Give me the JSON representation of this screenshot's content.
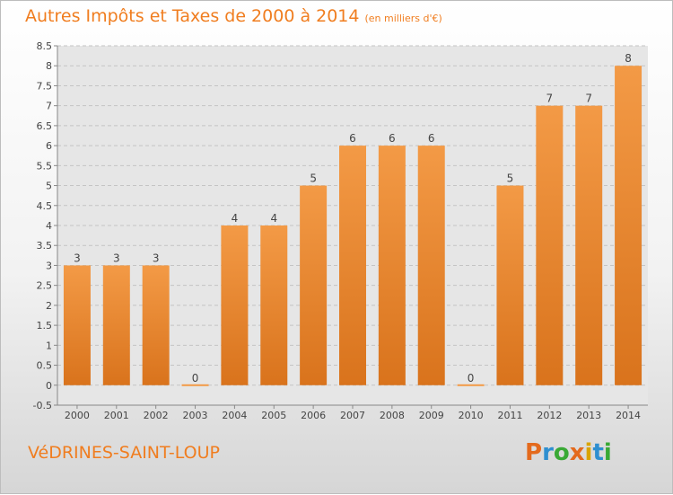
{
  "header": {
    "title": "Autres Impôts et Taxes de 2000 à 2014",
    "unit": "(en milliers d'€)"
  },
  "footer": {
    "commune": "VéDRINES-SAINT-LOUP",
    "logo_text": "Proxiti",
    "logo_colors": [
      "#e46a1d",
      "#2e8fd0",
      "#39a935",
      "#e46a1d",
      "#d9a400",
      "#2e8fd0",
      "#39a935"
    ]
  },
  "chart_data": {
    "type": "bar",
    "categories": [
      "2000",
      "2001",
      "2002",
      "2003",
      "2004",
      "2005",
      "2006",
      "2007",
      "2008",
      "2009",
      "2010",
      "2011",
      "2012",
      "2013",
      "2014"
    ],
    "values": [
      3,
      3,
      3,
      0,
      4,
      4,
      5,
      6,
      6,
      6,
      0,
      5,
      7,
      7,
      8
    ],
    "data_labels": [
      "3",
      "3",
      "3",
      "0",
      "4",
      "4",
      "5",
      "6",
      "6",
      "6",
      "0",
      "5",
      "7",
      "7",
      "8"
    ],
    "y_ticks": [
      -0.5,
      0,
      0.5,
      1,
      1.5,
      2,
      2.5,
      3,
      3.5,
      4,
      4.5,
      5,
      5.5,
      6,
      6.5,
      7,
      7.5,
      8,
      8.5
    ],
    "y_tick_labels": [
      "-0.5",
      "0",
      "0.5",
      "1",
      "1.5",
      "2",
      "2.5",
      "3",
      "3.5",
      "4",
      "4.5",
      "5",
      "5.5",
      "6",
      "6.5",
      "7",
      "7.5",
      "8",
      "8.5"
    ],
    "ylim": [
      -0.5,
      8.5
    ],
    "grid": "horizontal dashed",
    "bar_color": "#f39a46",
    "bar_color_dark": "#d9731c",
    "text_color": "#f07d1f"
  }
}
